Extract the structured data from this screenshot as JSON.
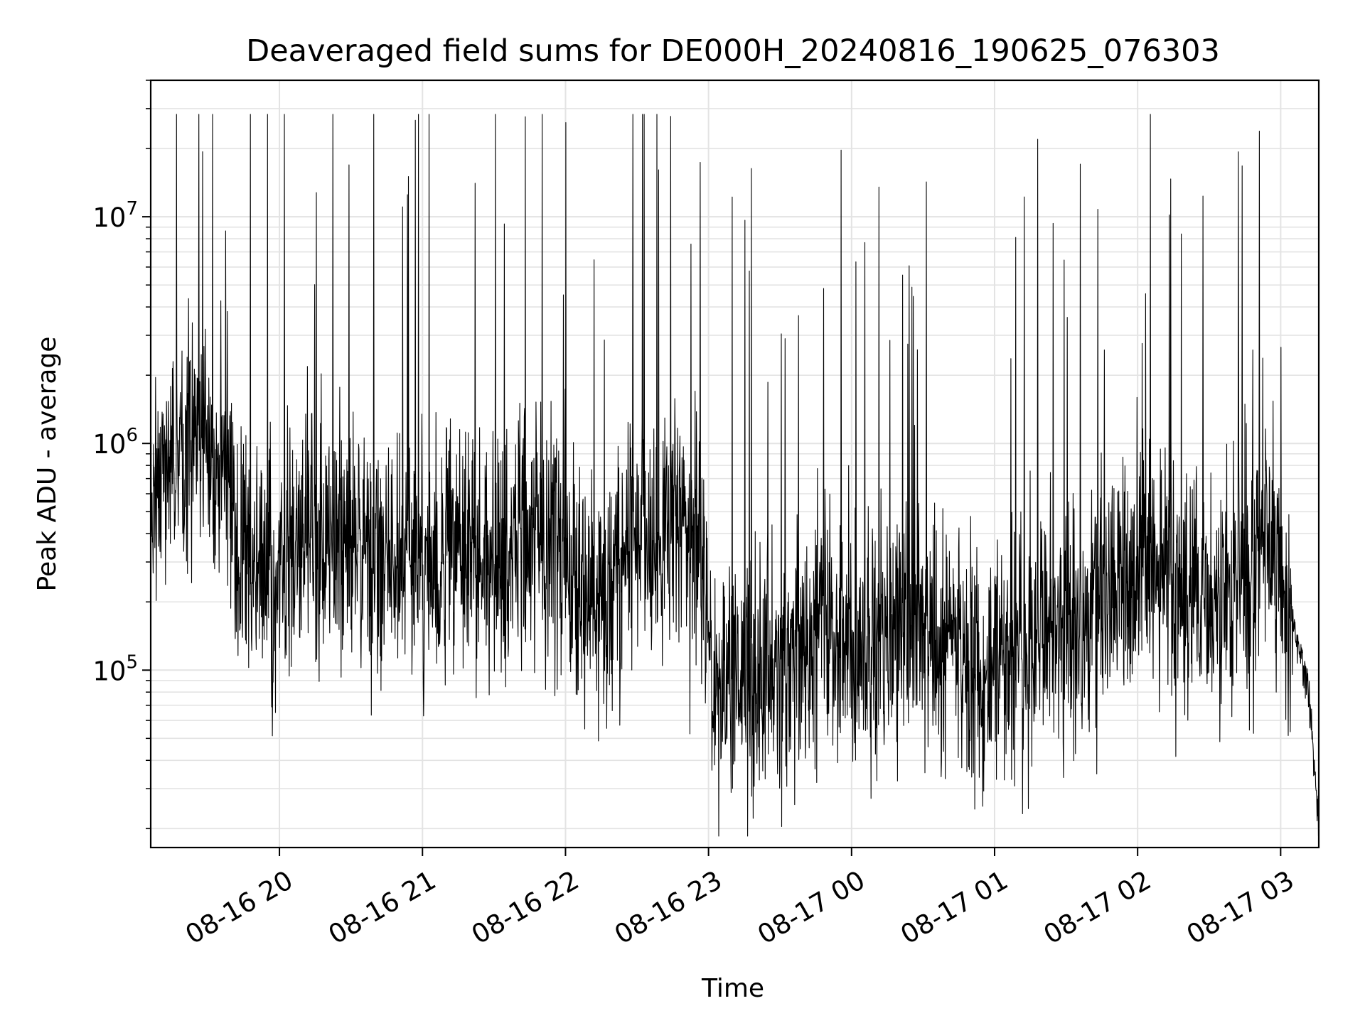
{
  "chart_data": {
    "type": "line",
    "title": "Deaveraged field sums for DE000H_20240816_190625_076303",
    "xlabel": "Time",
    "ylabel": "Peak ADU - average",
    "yscale": "log",
    "ylim": [
      16500,
      40000000
    ],
    "xlim": [
      "2024-08-16 19:06",
      "2024-08-17 03:16"
    ],
    "grid": true,
    "line_color": "#000000",
    "x_ticks": [
      {
        "value": "2024-08-16 20:00",
        "label": "08-16 20"
      },
      {
        "value": "2024-08-16 21:00",
        "label": "08-16 21"
      },
      {
        "value": "2024-08-16 22:00",
        "label": "08-16 22"
      },
      {
        "value": "2024-08-16 23:00",
        "label": "08-16 23"
      },
      {
        "value": "2024-08-17 00:00",
        "label": "08-17 00"
      },
      {
        "value": "2024-08-17 01:00",
        "label": "08-17 01"
      },
      {
        "value": "2024-08-17 02:00",
        "label": "08-17 02"
      },
      {
        "value": "2024-08-17 03:00",
        "label": "08-17 03"
      }
    ],
    "y_ticks": [
      {
        "value": 100000,
        "base": "10",
        "exp": "5"
      },
      {
        "value": 1000000,
        "base": "10",
        "exp": "6"
      },
      {
        "value": 10000000,
        "base": "10",
        "exp": "7"
      }
    ],
    "series": [
      {
        "x": [
          "2024-08-16 19:06",
          "2024-08-16 19:15",
          "2024-08-16 19:25",
          "2024-08-16 19:35",
          "2024-08-16 19:45",
          "2024-08-16 19:55",
          "2024-08-16 20:05",
          "2024-08-16 20:15",
          "2024-08-16 20:25",
          "2024-08-16 20:35",
          "2024-08-16 20:45",
          "2024-08-16 20:55",
          "2024-08-16 21:05",
          "2024-08-16 21:15",
          "2024-08-16 21:25",
          "2024-08-16 21:35",
          "2024-08-16 21:45",
          "2024-08-16 21:55",
          "2024-08-16 22:05",
          "2024-08-16 22:15",
          "2024-08-16 22:25",
          "2024-08-16 22:35",
          "2024-08-16 22:45",
          "2024-08-16 22:55",
          "2024-08-16 23:05",
          "2024-08-16 23:15",
          "2024-08-16 23:25",
          "2024-08-16 23:35",
          "2024-08-16 23:45",
          "2024-08-16 23:55",
          "2024-08-17 00:05",
          "2024-08-17 00:15",
          "2024-08-17 00:25",
          "2024-08-17 00:35",
          "2024-08-17 00:45",
          "2024-08-17 00:55",
          "2024-08-17 01:05",
          "2024-08-17 01:15",
          "2024-08-17 01:25",
          "2024-08-17 01:35",
          "2024-08-17 01:45",
          "2024-08-17 01:55",
          "2024-08-17 02:05",
          "2024-08-17 02:15",
          "2024-08-17 02:25",
          "2024-08-17 02:35",
          "2024-08-17 02:45",
          "2024-08-17 02:55",
          "2024-08-17 03:05",
          "2024-08-17 03:12",
          "2024-08-17 03:16"
        ],
        "y": [
          700000,
          900000,
          1200000,
          800000,
          300000,
          250000,
          300000,
          400000,
          350000,
          380000,
          300000,
          320000,
          300000,
          350000,
          300000,
          330000,
          400000,
          450000,
          250000,
          200000,
          350000,
          400000,
          500000,
          350000,
          80000,
          90000,
          100000,
          120000,
          150000,
          160000,
          120000,
          130000,
          140000,
          150000,
          120000,
          100000,
          130000,
          140000,
          150000,
          120000,
          200000,
          250000,
          350000,
          250000,
          220000,
          200000,
          280000,
          350000,
          160000,
          80000,
          20000
        ]
      }
    ]
  }
}
